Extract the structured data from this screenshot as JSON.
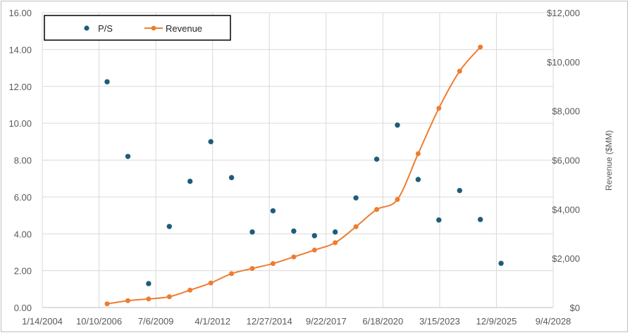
{
  "chart_data": {
    "type": "scatter",
    "title": "",
    "x_axis": {
      "label": "",
      "tick_labels": [
        "1/14/2004",
        "10/10/2006",
        "7/6/2009",
        "4/1/2012",
        "12/27/2014",
        "9/22/2017",
        "6/18/2020",
        "3/15/2023",
        "12/9/2025",
        "9/4/2028"
      ],
      "range": [
        "1/14/2004",
        "9/4/2028"
      ]
    },
    "y_axis_left": {
      "label": "",
      "tick_labels": [
        "0.00",
        "2.00",
        "4.00",
        "6.00",
        "8.00",
        "10.00",
        "12.00",
        "14.00",
        "16.00"
      ],
      "range": [
        0,
        16
      ]
    },
    "y_axis_right": {
      "label": "Revenue ($MM)",
      "tick_labels": [
        "$0",
        "$2,000",
        "$4,000",
        "$6,000",
        "$8,000",
        "$10,000",
        "$12,000"
      ],
      "range": [
        0,
        12000
      ]
    },
    "grid": "vertical gridlines at x ticks, horizontal gridlines at left y ticks",
    "legend": {
      "placement": "top-left",
      "entries": [
        "P/S",
        "Revenue"
      ]
    },
    "series": [
      {
        "name": "P/S",
        "style": "markers",
        "color": "#1f5c7a",
        "axis": "left",
        "x": [
          "3/1/2007",
          "3/1/2008",
          "3/1/2009",
          "3/1/2010",
          "3/1/2011",
          "3/1/2012",
          "3/1/2013",
          "3/1/2014",
          "3/1/2015",
          "3/1/2016",
          "3/1/2017",
          "3/1/2018",
          "3/1/2019",
          "3/1/2020",
          "3/1/2021",
          "3/1/2022",
          "3/1/2023",
          "3/1/2024",
          "3/1/2025",
          "3/1/2026"
        ],
        "y": [
          12.25,
          8.2,
          1.3,
          4.4,
          6.85,
          9.0,
          7.05,
          4.1,
          5.25,
          4.15,
          3.9,
          4.1,
          5.95,
          8.05,
          9.9,
          6.95,
          4.75,
          6.35,
          4.78,
          2.4
        ]
      },
      {
        "name": "Revenue",
        "style": "smoothed line with markers",
        "color": "#ed7d31",
        "axis": "right",
        "x": [
          "3/1/2007",
          "3/1/2008",
          "3/1/2009",
          "3/1/2010",
          "3/1/2011",
          "3/1/2012",
          "3/1/2013",
          "3/1/2014",
          "3/1/2015",
          "3/1/2016",
          "3/1/2017",
          "3/1/2018",
          "3/1/2019",
          "3/1/2020",
          "3/1/2021",
          "3/1/2022",
          "3/1/2023",
          "3/1/2024",
          "3/1/2025"
        ],
        "y": [
          150,
          280,
          350,
          440,
          710,
          1000,
          1380,
          1590,
          1790,
          2060,
          2340,
          2640,
          3290,
          3990,
          4400,
          6260,
          8110,
          9620,
          10600
        ]
      }
    ]
  }
}
